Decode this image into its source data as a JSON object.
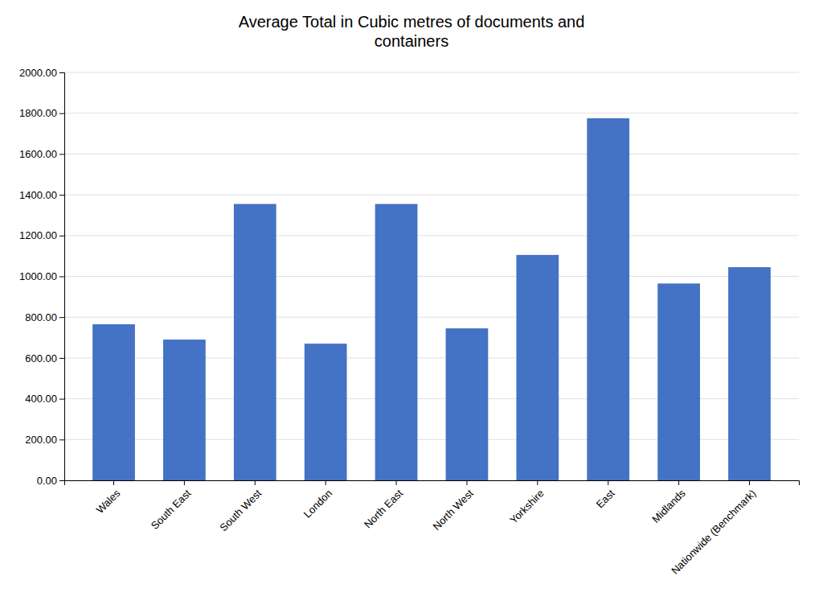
{
  "chart_data": {
    "type": "bar",
    "title": "Average Total in Cubic metres of documents and\ncontainers",
    "categories": [
      "Wales",
      "South East",
      "South West",
      "London",
      "North East",
      "North West",
      "Yorkshire",
      "East",
      "Midlands",
      "Nationwide (Benchmark)"
    ],
    "values": [
      765,
      690,
      1355,
      670,
      1355,
      745,
      1105,
      1775,
      965,
      1045
    ],
    "color": "#4472C4",
    "ylim": [
      0,
      2000
    ],
    "yticks": [
      {
        "value": 0,
        "label": "0.00"
      },
      {
        "value": 200,
        "label": "200.00"
      },
      {
        "value": 400,
        "label": "400.00"
      },
      {
        "value": 600,
        "label": "600.00"
      },
      {
        "value": 800,
        "label": "800.00"
      },
      {
        "value": 1000,
        "label": "1000.00"
      },
      {
        "value": 1200,
        "label": "1200.00"
      },
      {
        "value": 1400,
        "label": "1400.00"
      },
      {
        "value": 1600,
        "label": "1600.00"
      },
      {
        "value": 1800,
        "label": "1800.00"
      },
      {
        "value": 2000,
        "label": "2000.00"
      }
    ],
    "grid": true
  }
}
